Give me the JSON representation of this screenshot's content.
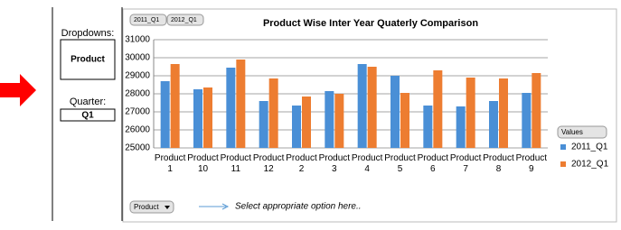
{
  "chart_data": {
    "type": "bar",
    "title": "Product Wise Inter Year Quaterly Comparison",
    "categories": [
      "Product 1",
      "Product 10",
      "Product 11",
      "Product 12",
      "Product 2",
      "Product 3",
      "Product 4",
      "Product 5",
      "Product 6",
      "Product 7",
      "Product 8",
      "Product 9"
    ],
    "series": [
      {
        "name": "2011_Q1",
        "color": "#4a8fd6",
        "values": [
          28700,
          28250,
          29450,
          27600,
          27350,
          28150,
          29650,
          29000,
          27350,
          27300,
          27600,
          28050
        ]
      },
      {
        "name": "2012_Q1",
        "color": "#ed7d31",
        "values": [
          29650,
          28350,
          29900,
          28850,
          27850,
          28000,
          29500,
          28050,
          29300,
          28900,
          28850,
          29150
        ]
      }
    ],
    "ylim": [
      25000,
      31000
    ],
    "yticks": [
      25000,
      26000,
      27000,
      28000,
      29000,
      30000,
      31000
    ],
    "grid": true,
    "legend_title": "Values"
  },
  "panel": {
    "dropdowns_label": "Dropdowns:",
    "dropdown_value": "Product",
    "quarter_label": "Quarter:",
    "quarter_value": "Q1"
  },
  "pivot": {
    "row_field": "Product",
    "hint": "Select appropriate option here.."
  }
}
